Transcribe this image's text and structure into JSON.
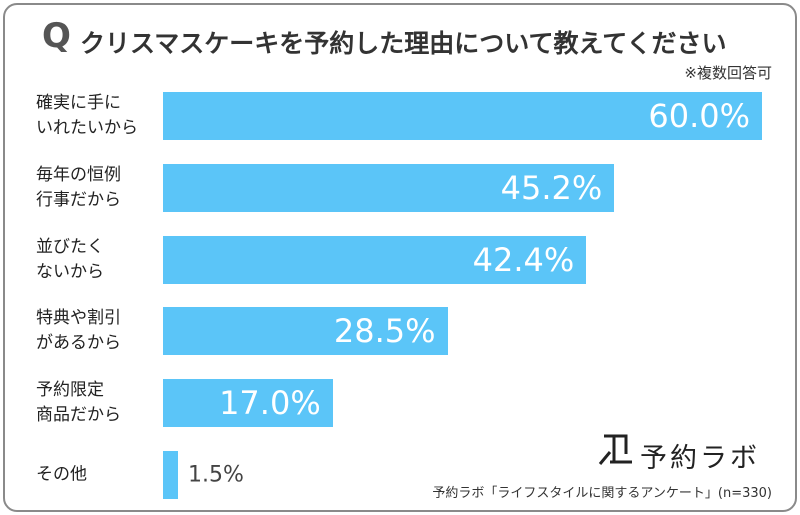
{
  "chart_data": {
    "type": "hbar",
    "title_prefix": "Q",
    "title": "クリスマスケーキを予約した理由について教えてください",
    "subtitle": "※複数回答可",
    "categories": [
      "確実に手に\nいれたいから",
      "毎年の恒例\n行事だから",
      "並びたく\nないから",
      "特典や割引\nがあるから",
      "予約限定\n商品だから",
      "その他"
    ],
    "values": [
      60.0,
      45.2,
      42.4,
      28.5,
      17.0,
      1.5
    ],
    "value_labels": [
      "60.0%",
      "45.2%",
      "42.4%",
      "28.5%",
      "17.0%",
      "1.5%"
    ],
    "color": "#5bc5f8",
    "logo": "予約ラボ",
    "source": "予約ラボ「ライフスタイルに関するアンケート」(n=330)"
  }
}
